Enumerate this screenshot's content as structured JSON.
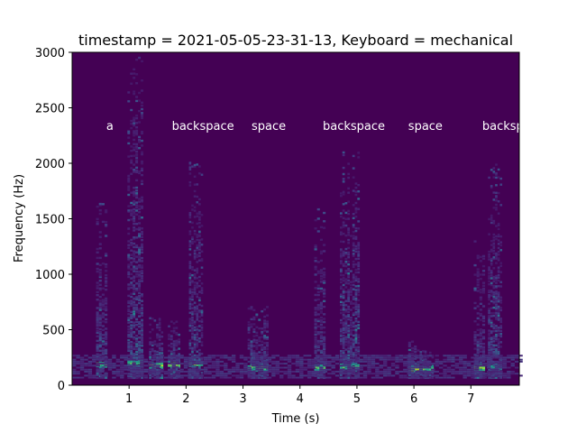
{
  "chart_data": {
    "type": "heatmap",
    "title": "timestamp = 2021-05-05-23-31-13, Keyboard = mechanical",
    "xlabel": "Time (s)",
    "ylabel": "Frequency (Hz)",
    "xlim": [
      0.0,
      7.85
    ],
    "ylim": [
      0,
      3000
    ],
    "x_ticks": [
      1,
      2,
      3,
      4,
      5,
      6,
      7
    ],
    "y_ticks": [
      0,
      500,
      1000,
      1500,
      2000,
      2500,
      3000
    ],
    "colormap": "viridis",
    "key_annotations": [
      {
        "label": "a",
        "t": 0.6
      },
      {
        "label": "backspace",
        "t": 1.75
      },
      {
        "label": "space",
        "t": 3.15
      },
      {
        "label": "backspace",
        "t": 4.4
      },
      {
        "label": "space",
        "t": 5.9
      },
      {
        "label": "backspace",
        "t": 7.2
      }
    ],
    "bursts": [
      {
        "t0": 0.42,
        "t1": 0.62,
        "f_max": 1650,
        "peak_freq": 180,
        "peak_value": 0.95
      },
      {
        "t0": 0.97,
        "t1": 1.25,
        "f_max": 3000,
        "peak_freq": 190,
        "peak_value": 0.85
      },
      {
        "t0": 1.35,
        "t1": 1.6,
        "f_max": 600,
        "peak_freq": 170,
        "peak_value": 0.95
      },
      {
        "t0": 1.68,
        "t1": 1.9,
        "f_max": 600,
        "peak_freq": 180,
        "peak_value": 1.0
      },
      {
        "t0": 2.05,
        "t1": 2.3,
        "f_max": 2000,
        "peak_freq": 185,
        "peak_value": 0.95
      },
      {
        "t0": 3.08,
        "t1": 3.45,
        "f_max": 700,
        "peak_freq": 150,
        "peak_value": 0.95
      },
      {
        "t0": 4.25,
        "t1": 4.45,
        "f_max": 1600,
        "peak_freq": 150,
        "peak_value": 0.9
      },
      {
        "t0": 4.7,
        "t1": 5.05,
        "f_max": 2100,
        "peak_freq": 160,
        "peak_value": 0.85
      },
      {
        "t0": 5.9,
        "t1": 6.1,
        "f_max": 450,
        "peak_freq": 140,
        "peak_value": 1.0
      },
      {
        "t0": 6.1,
        "t1": 6.35,
        "f_max": 300,
        "peak_freq": 140,
        "peak_value": 0.9
      },
      {
        "t0": 7.05,
        "t1": 7.25,
        "f_max": 1300,
        "peak_freq": 150,
        "peak_value": 1.0
      },
      {
        "t0": 7.3,
        "t1": 7.55,
        "f_max": 2000,
        "peak_freq": 160,
        "peak_value": 0.6
      }
    ]
  }
}
